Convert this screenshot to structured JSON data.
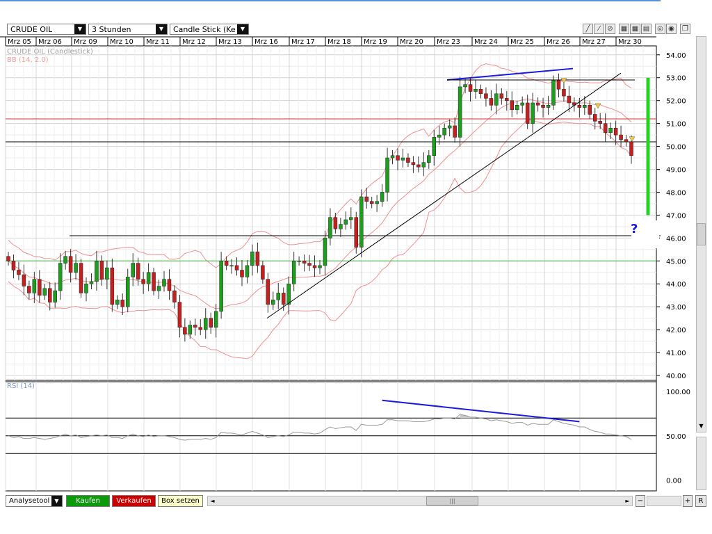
{
  "toolbar": {
    "instrument": "CRUDE OIL",
    "interval": "3 Stunden",
    "chart_style": "Candle Stick (Kerze"
  },
  "bottom": {
    "analysis_tool": "Analysetool",
    "buy": "Kaufen",
    "sell": "Verkaufen",
    "box": "Box setzen",
    "reset": "R",
    "zoom_out": "−",
    "zoom_in": "+",
    "scroll_left": "◄",
    "scroll_right": "►",
    "scroll_up": "▲",
    "scroll_down": "▼",
    "grip": "|||"
  },
  "colors": {
    "up": "#1e9e1e",
    "down": "#c42020",
    "bb": "#ef8f8f",
    "trend": "#000000",
    "blue": "#1a1adb",
    "bright_green": "#22d322",
    "buy_bg": "#0a9a0a",
    "sell_bg": "#cc0000",
    "box_bg": "#ffffcc"
  },
  "chart_data": [
    {
      "type": "candlestick",
      "title": "CRUDE OIL (Candlestick)",
      "indicator_label": "BB (14, 2.0)",
      "x_labels": [
        "Mrz 05",
        "Mrz 06",
        "Mrz 09",
        "Mrz 10",
        "Mrz 11",
        "Mrz 12",
        "Mrz 13",
        "Mrz 16",
        "Mrz 17",
        "Mrz 18",
        "Mrz 19",
        "Mrz 20",
        "Mrz 23",
        "Mrz 24",
        "Mrz 25",
        "Mrz 26",
        "Mrz 27",
        "Mrz 30"
      ],
      "ylim": [
        40,
        54.3
      ],
      "y_ticks": [
        "54.00",
        "53.00",
        "52.00",
        "51.00",
        "50.00",
        "49.00",
        "48.00",
        "47.00",
        "46.00",
        "45.00",
        "44.00",
        "43.00",
        "42.00",
        "41.00",
        "40.00"
      ],
      "closes": [
        45.0,
        44.6,
        44.4,
        43.9,
        43.6,
        44.2,
        43.5,
        43.8,
        43.2,
        43.7,
        44.9,
        45.2,
        44.5,
        44.9,
        43.6,
        44.0,
        44.1,
        45.0,
        44.2,
        44.7,
        43.1,
        43.3,
        43.0,
        44.3,
        44.9,
        44.2,
        44.0,
        44.5,
        43.7,
        43.9,
        44.2,
        43.7,
        43.2,
        42.1,
        41.8,
        42.2,
        42.1,
        42.0,
        42.5,
        42.1,
        42.8,
        45.0,
        44.8,
        44.8,
        44.6,
        44.3,
        44.8,
        45.4,
        44.8,
        44.2,
        43.1,
        43.3,
        43.6,
        43.1,
        44.0,
        45.0,
        45.0,
        44.9,
        44.8,
        44.7,
        44.8,
        46.0,
        46.9,
        46.4,
        46.6,
        46.8,
        46.9,
        45.6,
        47.8,
        47.6,
        47.5,
        47.6,
        48.0,
        49.5,
        49.6,
        49.4,
        49.5,
        49.3,
        49.2,
        49.1,
        49.3,
        49.6,
        50.4,
        50.5,
        50.8,
        50.9,
        50.4,
        52.6,
        52.7,
        52.4,
        52.5,
        52.3,
        52.1,
        51.8,
        52.3,
        52.1,
        52.0,
        51.6,
        51.8,
        51.9,
        51.0,
        51.9,
        51.8,
        51.7,
        51.8,
        52.9,
        52.5,
        52.2,
        51.9,
        51.8,
        51.7,
        51.8,
        51.4,
        51.1,
        51.0,
        50.6,
        50.8,
        50.5,
        50.3,
        50.2,
        49.6
      ],
      "bollinger": {
        "upper": "drawn",
        "middle": "drawn",
        "lower": "drawn"
      },
      "horizontal_lines": [
        {
          "y": 51.2,
          "color": "red"
        },
        {
          "y": 50.2,
          "color": "black"
        },
        {
          "y": 46.1,
          "color": "black"
        },
        {
          "y": 45.0,
          "color": "green"
        }
      ],
      "trendlines": [
        {
          "from": [
            "Mrz 16",
            42.5
          ],
          "to": [
            "Mrz 30",
            53.2
          ],
          "color": "black"
        },
        {
          "from": [
            "Mrz 23",
            52.9
          ],
          "to": [
            "Mrz 27",
            53.4
          ],
          "color": "blue"
        },
        {
          "from": [
            "Mrz 23",
            52.9
          ],
          "to": [
            "Mrz 30",
            52.9
          ],
          "color": "black"
        }
      ],
      "projection": {
        "from": 53.0,
        "to": 47.0,
        "color": "green",
        "label": "?"
      }
    },
    {
      "type": "line",
      "title": "RSI (14)",
      "ylim": [
        -5,
        107
      ],
      "y_ticks": [
        "100.00",
        "50.00",
        "0.00"
      ],
      "levels": [
        70,
        50,
        30
      ],
      "values": [
        50,
        48,
        49,
        47,
        47,
        48,
        47,
        46,
        47,
        48,
        50,
        52,
        50,
        51,
        48,
        49,
        50,
        51,
        50,
        51,
        48,
        48,
        47,
        50,
        52,
        50,
        49,
        51,
        49,
        50,
        50,
        49,
        48,
        46,
        45,
        46,
        46,
        46,
        47,
        46,
        48,
        54,
        53,
        53,
        52,
        51,
        53,
        55,
        53,
        51,
        48,
        49,
        50,
        49,
        51,
        54,
        54,
        53,
        53,
        52,
        53,
        57,
        60,
        58,
        59,
        60,
        60,
        56,
        63,
        62,
        62,
        62,
        63,
        68,
        68,
        67,
        67,
        67,
        66,
        66,
        66,
        67,
        69,
        69,
        70,
        70,
        69,
        74,
        73,
        71,
        71,
        70,
        69,
        67,
        68,
        67,
        66,
        64,
        65,
        65,
        62,
        64,
        63,
        63,
        63,
        68,
        66,
        64,
        63,
        62,
        60,
        60,
        57,
        55,
        54,
        52,
        52,
        51,
        50,
        49,
        46
      ],
      "divergence_line": {
        "from": [
          72,
          90
        ],
        "to": [
          110,
          66
        ],
        "color": "blue"
      }
    }
  ]
}
